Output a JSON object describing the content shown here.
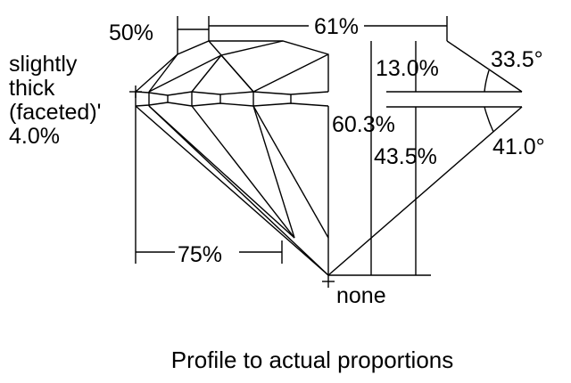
{
  "labels": {
    "crown_pct": "50%",
    "table": "61%",
    "girdle_line1": "slightly",
    "girdle_line2": "thick",
    "girdle_line3": "(faceted)'",
    "girdle_pct": "4.0%",
    "crown_height": "13.0%",
    "crown_angle": "33.5°",
    "total_depth": "60.3%",
    "pavilion_depth": "43.5%",
    "pavilion_angle": "41.0°",
    "lower_half": "75%",
    "culet": "none"
  },
  "caption": "Profile to actual proportions"
}
